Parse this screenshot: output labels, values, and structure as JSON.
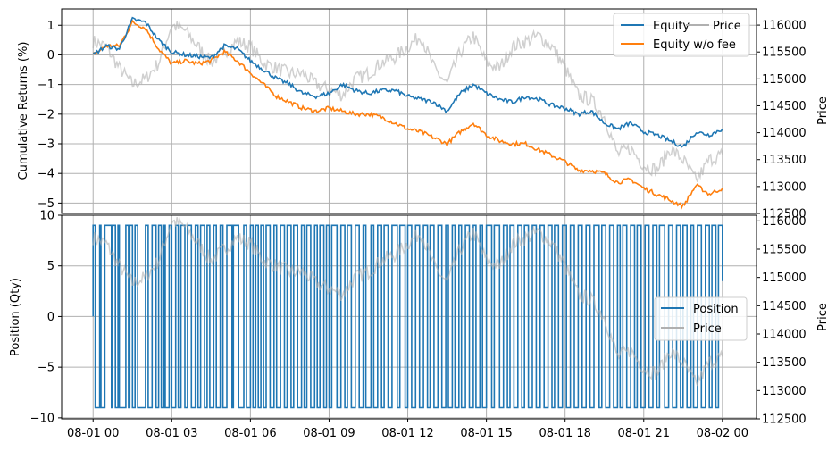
{
  "figure": {
    "background": "#ffffff"
  },
  "chart_data": [
    {
      "type": "line",
      "title": "",
      "xlabel": "",
      "ylabel": "Cumulative Returns (%)",
      "y2label": "Price",
      "x_ticks": [
        "08-01 00",
        "08-01 03",
        "08-01 06",
        "08-01 09",
        "08-01 12",
        "08-01 15",
        "08-01 18",
        "08-01 21",
        "08-02 00"
      ],
      "xlim_hours": [
        -1.2,
        25.3
      ],
      "ylim": [
        -5.35,
        1.55
      ],
      "y_ticks": [
        1,
        0,
        -1,
        -2,
        -3,
        -4,
        -5
      ],
      "y2lim": [
        112500,
        116300
      ],
      "y2_ticks": [
        116000,
        115500,
        115000,
        114500,
        114000,
        113500,
        113000,
        112500
      ],
      "grid": true,
      "legend": {
        "placement": "upper right",
        "entries": [
          [
            "Equity",
            "Price"
          ],
          [
            "Equity w/o fee"
          ]
        ]
      },
      "x_hours": [
        0,
        0.5,
        1,
        1.5,
        2,
        2.5,
        3,
        3.5,
        4,
        4.5,
        5,
        5.5,
        6,
        6.5,
        7,
        7.5,
        8,
        8.5,
        9,
        9.5,
        10,
        10.5,
        11,
        11.5,
        12,
        12.5,
        13,
        13.5,
        14,
        14.5,
        15,
        15.5,
        16,
        16.5,
        17,
        17.5,
        18,
        18.5,
        19,
        19.5,
        20,
        20.5,
        21,
        21.5,
        22,
        22.5,
        23,
        23.5,
        24
      ],
      "series": [
        {
          "name": "Equity",
          "color": "#1f77b4",
          "axis": "left",
          "values": [
            0.0,
            0.3,
            0.2,
            1.2,
            1.1,
            0.5,
            0.1,
            0.0,
            -0.05,
            -0.1,
            0.3,
            0.2,
            -0.2,
            -0.5,
            -0.8,
            -1.0,
            -1.3,
            -1.4,
            -1.3,
            -1.0,
            -1.2,
            -1.3,
            -1.2,
            -1.2,
            -1.4,
            -1.5,
            -1.6,
            -1.9,
            -1.3,
            -1.0,
            -1.3,
            -1.5,
            -1.6,
            -1.4,
            -1.5,
            -1.7,
            -1.8,
            -2.0,
            -1.9,
            -2.3,
            -2.5,
            -2.3,
            -2.6,
            -2.7,
            -2.9,
            -3.1,
            -2.6,
            -2.7,
            -2.5
          ]
        },
        {
          "name": "Equity w/o fee",
          "color": "#ff7f0e",
          "axis": "left",
          "values": [
            0.0,
            0.3,
            0.3,
            1.1,
            0.9,
            0.2,
            -0.3,
            -0.2,
            -0.3,
            -0.2,
            0.1,
            -0.2,
            -0.6,
            -1.0,
            -1.4,
            -1.6,
            -1.8,
            -1.9,
            -1.8,
            -1.9,
            -2.0,
            -2.0,
            -2.1,
            -2.3,
            -2.5,
            -2.6,
            -2.8,
            -3.0,
            -2.6,
            -2.3,
            -2.7,
            -2.9,
            -3.0,
            -3.0,
            -3.2,
            -3.4,
            -3.6,
            -3.9,
            -3.9,
            -4.0,
            -4.3,
            -4.2,
            -4.5,
            -4.7,
            -4.9,
            -5.1,
            -4.4,
            -4.7,
            -4.5
          ]
        },
        {
          "name": "Price",
          "color": "#b0b0b0",
          "axis": "right",
          "values": [
            115700,
            115600,
            115200,
            114900,
            115000,
            115300,
            116000,
            115900,
            115600,
            115300,
            115500,
            115700,
            115600,
            115300,
            115200,
            115100,
            115100,
            114900,
            114800,
            114700,
            115000,
            115100,
            115300,
            115400,
            115600,
            115800,
            115200,
            114900,
            115500,
            115800,
            115300,
            115200,
            115600,
            115700,
            115800,
            115600,
            115200,
            114700,
            114600,
            114300,
            113600,
            113700,
            113400,
            113300,
            113700,
            113500,
            113100,
            113500,
            113600
          ]
        }
      ]
    },
    {
      "type": "line",
      "title": "",
      "xlabel": "",
      "ylabel": "Position (Qty)",
      "y2label": "Price",
      "x_ticks": [
        "08-01 00",
        "08-01 03",
        "08-01 06",
        "08-01 09",
        "08-01 12",
        "08-01 15",
        "08-01 18",
        "08-01 21",
        "08-02 00"
      ],
      "xlim_hours": [
        -1.2,
        25.3
      ],
      "ylim": [
        -10.1,
        10.0
      ],
      "y_ticks": [
        10,
        5,
        0,
        -5,
        -10
      ],
      "y2lim": [
        112500,
        116100
      ],
      "y2_ticks": [
        116000,
        115500,
        115000,
        114500,
        114000,
        113500,
        113000,
        112500
      ],
      "grid": true,
      "legend": {
        "placement": "center right",
        "entries": [
          [
            "Position"
          ],
          [
            "Price"
          ]
        ]
      },
      "series": [
        {
          "name": "Position",
          "color": "#1f77b4",
          "axis": "left",
          "step": true,
          "levels": [
            9,
            -9
          ],
          "switch_hours": [
            0,
            0.08,
            0.25,
            0.3,
            0.45,
            0.7,
            0.75,
            0.85,
            0.95,
            1.0,
            1.25,
            1.35,
            1.4,
            1.5,
            1.6,
            1.7,
            2.0,
            2.1,
            2.25,
            2.4,
            2.5,
            2.6,
            2.7,
            2.75,
            2.9,
            3.0,
            3.15,
            3.25,
            3.35,
            3.5,
            3.6,
            3.75,
            3.9,
            4.0,
            4.1,
            4.25,
            4.35,
            4.45,
            4.6,
            4.7,
            4.85,
            4.95,
            5.1,
            5.3,
            5.35,
            5.55,
            5.75,
            5.85,
            6.0,
            6.1,
            6.2,
            6.3,
            6.4,
            6.5,
            6.6,
            6.75,
            6.9,
            7.0,
            7.15,
            7.3,
            7.4,
            7.55,
            7.65,
            7.8,
            7.95,
            8.05,
            8.15,
            8.3,
            8.45,
            8.55,
            8.65,
            8.8,
            8.9,
            9.0,
            9.1,
            9.3,
            9.45,
            9.6,
            9.7,
            9.85,
            10.0,
            10.15,
            10.3,
            10.4,
            10.6,
            10.7,
            10.85,
            11.0,
            11.1,
            11.25,
            11.4,
            11.6,
            11.7,
            11.9,
            12.0,
            12.15,
            12.3,
            12.45,
            12.6,
            12.75,
            12.85,
            13.0,
            13.15,
            13.3,
            13.45,
            13.55,
            13.7,
            13.8,
            13.95,
            14.05,
            14.2,
            14.35,
            14.5,
            14.6,
            14.75,
            14.85,
            15.0,
            15.2,
            15.3,
            15.5,
            15.65,
            15.8,
            15.9,
            16.05,
            16.2,
            16.35,
            16.45,
            16.6,
            16.75,
            16.9,
            17.05,
            17.2,
            17.35,
            17.5,
            17.6,
            17.75,
            17.9,
            18.05,
            18.2,
            18.35,
            18.5,
            18.65,
            18.8,
            18.95,
            19.1,
            19.3,
            19.4,
            19.55,
            19.7,
            19.85,
            20.0,
            20.1,
            20.2,
            20.35,
            20.5,
            20.65,
            20.75,
            20.9,
            21.05,
            21.2,
            21.35,
            21.5,
            21.6,
            21.8,
            21.95,
            22.1,
            22.25,
            22.4,
            22.5,
            22.65,
            22.8,
            22.9,
            23.05,
            23.2,
            23.35,
            23.5,
            23.6,
            23.75,
            23.85,
            24.0
          ]
        },
        {
          "name": "Price",
          "color": "#b0b0b0",
          "axis": "right",
          "values": [
            115700,
            115600,
            115200,
            114900,
            115000,
            115300,
            116000,
            115900,
            115600,
            115300,
            115500,
            115700,
            115600,
            115300,
            115200,
            115100,
            115100,
            114900,
            114800,
            114700,
            115000,
            115100,
            115300,
            115400,
            115600,
            115800,
            115200,
            114900,
            115500,
            115800,
            115300,
            115200,
            115600,
            115700,
            115800,
            115600,
            115200,
            114700,
            114600,
            114300,
            113600,
            113700,
            113400,
            113300,
            113700,
            113500,
            113100,
            113500,
            113600
          ]
        }
      ]
    }
  ]
}
